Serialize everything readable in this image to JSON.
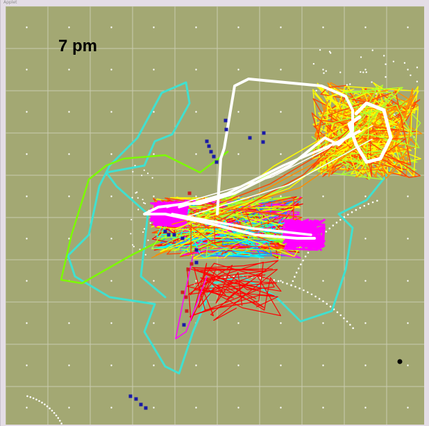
{
  "window": {
    "title": "",
    "title_fragment": "Applet"
  },
  "overlay": {
    "time_label": "7 pm"
  },
  "plot": {
    "background": "#a3a873",
    "grid_color": "#c9cbb0",
    "frame_color": "#e4dde6",
    "track_colors": [
      "#ffffff",
      "#40e0d0",
      "#7cfc00",
      "#ffff00",
      "#ff8c00",
      "#ff4500",
      "#ff00ff",
      "#1e90ff",
      "#00ffff",
      "#ff0000",
      "#adff2f"
    ],
    "marker_colors": {
      "blue": "#1a1aa6",
      "red": "#cc2020",
      "black": "#000000",
      "dot": "#ffffff"
    }
  }
}
